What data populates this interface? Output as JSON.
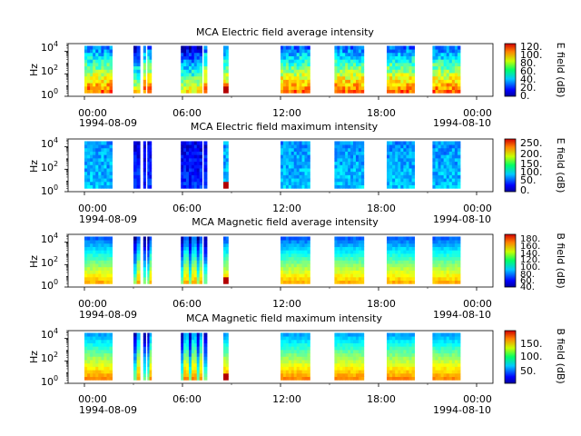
{
  "chart_data": [
    {
      "type": "heatmap",
      "title": "MCA  Electric field average intensity",
      "ylabel": "Hz",
      "yscale": "log",
      "ylim": [
        1,
        50000
      ],
      "yticks": [
        {
          "exp": "0"
        },
        {
          "exp": "2"
        },
        {
          "exp": "4"
        }
      ],
      "xticks": [
        {
          "time": "00:00",
          "date": "1994-08-09"
        },
        {
          "time": "06:00",
          "date": ""
        },
        {
          "time": "12:00",
          "date": ""
        },
        {
          "time": "18:00",
          "date": ""
        },
        {
          "time": "00:00",
          "date": "1994-08-10"
        }
      ],
      "xlim_hours": [
        -1,
        25
      ],
      "colorbar": {
        "label": "E field (dB)",
        "range": [
          0,
          125
        ],
        "ticks": [
          "120.",
          "100.",
          "80.",
          "60.",
          "40.",
          "20.",
          "0."
        ]
      },
      "segments_hours": [
        [
          0,
          1.7
        ],
        [
          3.0,
          3.4
        ],
        [
          3.6,
          3.75
        ],
        [
          3.85,
          4.1
        ],
        [
          5.9,
          7.2
        ],
        [
          7.3,
          7.5
        ],
        [
          8.5,
          8.8
        ],
        [
          12.0,
          13.8
        ],
        [
          15.3,
          17.1
        ],
        [
          18.5,
          20.2
        ],
        [
          21.3,
          23.0
        ]
      ],
      "grid": false
    },
    {
      "type": "heatmap",
      "title": "MCA  Electric field maximum intensity",
      "ylabel": "Hz",
      "yscale": "log",
      "ylim": [
        1,
        50000
      ],
      "yticks": [
        {
          "exp": "0"
        },
        {
          "exp": "2"
        },
        {
          "exp": "4"
        }
      ],
      "xticks": [
        {
          "time": "00:00",
          "date": "1994-08-09"
        },
        {
          "time": "06:00",
          "date": ""
        },
        {
          "time": "12:00",
          "date": ""
        },
        {
          "time": "18:00",
          "date": ""
        },
        {
          "time": "00:00",
          "date": "1994-08-10"
        }
      ],
      "xlim_hours": [
        -1,
        25
      ],
      "colorbar": {
        "label": "E field (dB)",
        "range": [
          0,
          260
        ],
        "ticks": [
          "250.",
          "200.",
          "150.",
          "100.",
          "50.",
          "0."
        ]
      },
      "segments_hours": [
        [
          0,
          1.7
        ],
        [
          3.0,
          3.4
        ],
        [
          3.6,
          3.75
        ],
        [
          3.85,
          4.1
        ],
        [
          5.9,
          7.2
        ],
        [
          7.3,
          7.5
        ],
        [
          8.5,
          8.8
        ],
        [
          12.0,
          13.8
        ],
        [
          15.3,
          17.1
        ],
        [
          18.5,
          20.2
        ],
        [
          21.3,
          23.0
        ]
      ],
      "grid": false
    },
    {
      "type": "heatmap",
      "title": "MCA  Magnetic field average intensity",
      "ylabel": "Hz",
      "yscale": "log",
      "ylim": [
        1,
        50000
      ],
      "yticks": [
        {
          "exp": "0"
        },
        {
          "exp": "2"
        },
        {
          "exp": "4"
        }
      ],
      "xticks": [
        {
          "time": "00:00",
          "date": "1994-08-09"
        },
        {
          "time": "06:00",
          "date": ""
        },
        {
          "time": "12:00",
          "date": ""
        },
        {
          "time": "18:00",
          "date": ""
        },
        {
          "time": "00:00",
          "date": "1994-08-10"
        }
      ],
      "xlim_hours": [
        -1,
        25
      ],
      "colorbar": {
        "label": "B field (dB)",
        "range": [
          40,
          185
        ],
        "ticks": [
          "180.",
          "160.",
          "140.",
          "120.",
          "100.",
          "80.",
          "60.",
          "40."
        ]
      },
      "segments_hours": [
        [
          0,
          1.7
        ],
        [
          3.0,
          3.4
        ],
        [
          3.6,
          3.75
        ],
        [
          3.85,
          4.1
        ],
        [
          5.9,
          7.2
        ],
        [
          7.3,
          7.5
        ],
        [
          8.5,
          8.8
        ],
        [
          12.0,
          13.8
        ],
        [
          15.3,
          17.1
        ],
        [
          18.5,
          20.2
        ],
        [
          21.3,
          23.0
        ]
      ],
      "grid": false
    },
    {
      "type": "heatmap",
      "title": "MCA  Magnetic field maximum intensity",
      "ylabel": "Hz",
      "yscale": "log",
      "ylim": [
        1,
        50000
      ],
      "yticks": [
        {
          "exp": "0"
        },
        {
          "exp": "2"
        },
        {
          "exp": "4"
        }
      ],
      "xticks": [
        {
          "time": "00:00",
          "date": "1994-08-09"
        },
        {
          "time": "06:00",
          "date": ""
        },
        {
          "time": "12:00",
          "date": ""
        },
        {
          "time": "18:00",
          "date": ""
        },
        {
          "time": "00:00",
          "date": "1994-08-10"
        }
      ],
      "xlim_hours": [
        -1,
        25
      ],
      "colorbar": {
        "label": "B field (dB)",
        "range": [
          10,
          190
        ],
        "ticks": [
          "150.",
          "100.",
          "50."
        ]
      },
      "segments_hours": [
        [
          0,
          1.7
        ],
        [
          3.0,
          3.4
        ],
        [
          3.6,
          3.75
        ],
        [
          3.85,
          4.1
        ],
        [
          5.9,
          7.2
        ],
        [
          7.3,
          7.5
        ],
        [
          8.5,
          8.8
        ],
        [
          12.0,
          13.8
        ],
        [
          15.3,
          17.1
        ],
        [
          18.5,
          20.2
        ],
        [
          21.3,
          23.0
        ]
      ],
      "grid": false
    }
  ]
}
